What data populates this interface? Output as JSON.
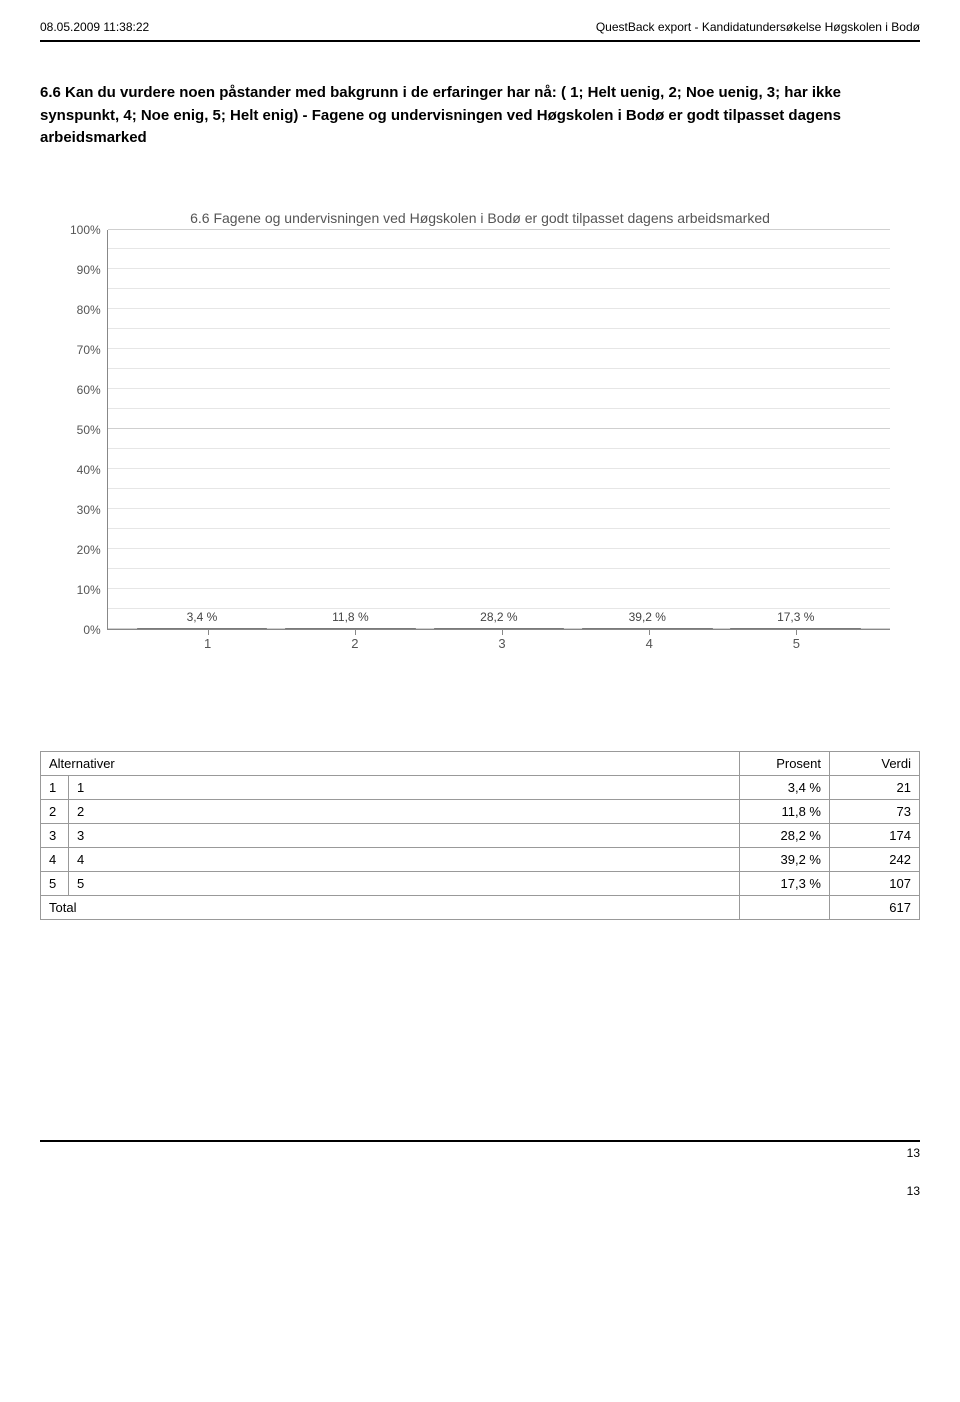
{
  "header": {
    "timestamp": "08.05.2009 11:38:22",
    "export_label": "QuestBack export - Kandidatundersøkelse Høgskolen i Bodø"
  },
  "question": "6.6 Kan du vurdere noen påstander med bakgrunn i de erfaringer har nå: ( 1; Helt uenig, 2; Noe uenig, 3; har ikke synspunkt, 4; Noe enig, 5; Helt enig) - Fagene og undervisningen ved Høgskolen i Bodø er godt tilpasset dagens arbeidsmarked",
  "chart": {
    "type": "bar",
    "title": "6.6 Fagene og undervisningen ved Høgskolen i Bodø er godt tilpasset dagens arbeidsmarked",
    "categories": [
      "1",
      "2",
      "3",
      "4",
      "5"
    ],
    "values": [
      3.4,
      11.8,
      28.2,
      39.2,
      17.3
    ],
    "value_labels": [
      "3,4 %",
      "11,8 %",
      "28,2 %",
      "39,2 %",
      "17,3 %"
    ],
    "bar_color": "#8c8c8c",
    "ylim": [
      0,
      100
    ],
    "yticks": [
      "100%",
      "90%",
      "80%",
      "70%",
      "60%",
      "50%",
      "40%",
      "30%",
      "20%",
      "10%",
      "0%"
    ],
    "ytick_step": 10,
    "grid_color": "#e6e6e6",
    "axis_color": "#888888",
    "title_color": "#555555",
    "title_fontsize": 14,
    "label_color": "#444444",
    "label_fontsize": 12
  },
  "table": {
    "columns": [
      "Alternativer",
      "Prosent",
      "Verdi"
    ],
    "rows": [
      {
        "idx": "1",
        "label": "1",
        "prosent": "3,4 %",
        "verdi": "21"
      },
      {
        "idx": "2",
        "label": "2",
        "prosent": "11,8 %",
        "verdi": "73"
      },
      {
        "idx": "3",
        "label": "3",
        "prosent": "28,2 %",
        "verdi": "174"
      },
      {
        "idx": "4",
        "label": "4",
        "prosent": "39,2 %",
        "verdi": "242"
      },
      {
        "idx": "5",
        "label": "5",
        "prosent": "17,3 %",
        "verdi": "107"
      }
    ],
    "total_label": "Total",
    "total_value": "617"
  },
  "footer": {
    "page_inner": "13",
    "page_outer": "13"
  }
}
